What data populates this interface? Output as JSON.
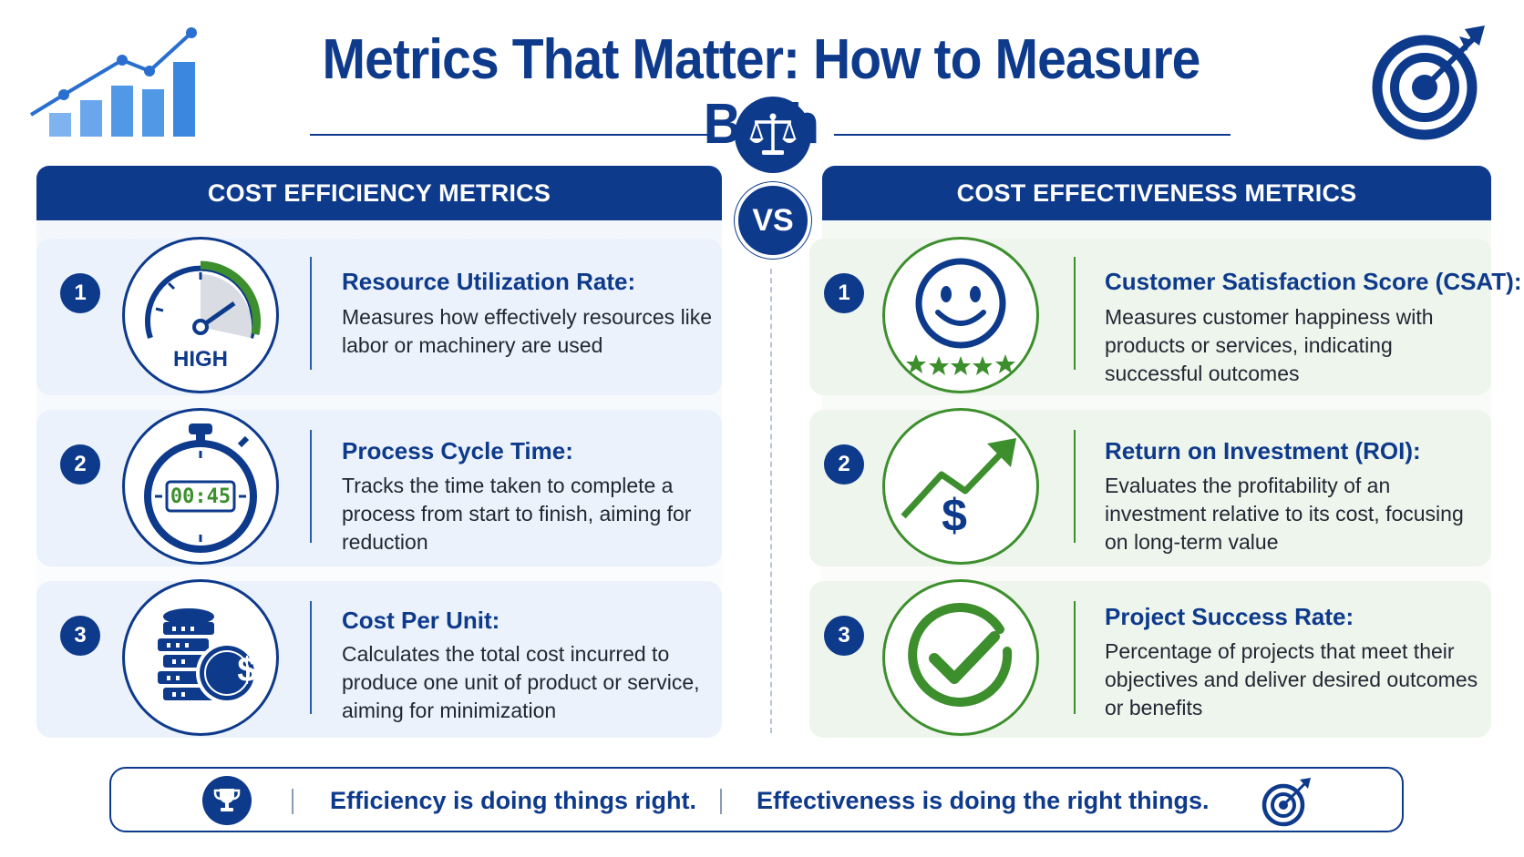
{
  "title": "Metrics That Matter: How to Measure Both",
  "vs_label": "VS",
  "colors": {
    "navy": "#0e3a8c",
    "green": "#3d8f2e",
    "accent_blue": "#4a8fe0"
  },
  "icons": {
    "top_left": "bar-chart-trend-icon",
    "top_right": "target-arrow-icon",
    "center": "balance-scale-icon"
  },
  "left": {
    "header": "COST EFFICIENCY METRICS",
    "items": [
      {
        "num": "1",
        "icon": "gauge-icon",
        "icon_label": "HIGH",
        "title": "Resource Utilization Rate:",
        "desc": "Measures how effectively resources like labor or machinery are used"
      },
      {
        "num": "2",
        "icon": "stopwatch-icon",
        "icon_label": "00:45",
        "title": "Process Cycle Time:",
        "desc": "Tracks the time taken to complete a process from start to finish, aiming for reduction"
      },
      {
        "num": "3",
        "icon": "coins-dollar-icon",
        "icon_label": "$",
        "title": "Cost Per Unit:",
        "desc": "Calculates the total cost incurred to produce one unit of product or service, aiming for minimization"
      }
    ]
  },
  "right": {
    "header": "COST EFFECTIVENESS METRICS",
    "items": [
      {
        "num": "1",
        "icon": "smiley-stars-icon",
        "title": "Customer Satisfaction Score (CSAT):",
        "desc": "Measures customer happiness with products or services, indicating successful outcomes"
      },
      {
        "num": "2",
        "icon": "dollar-growth-arrow-icon",
        "icon_label": "$",
        "title": "Return on Investment (ROI):",
        "desc": "Evaluates the profitability of an investment relative to its cost, focusing on long-term value"
      },
      {
        "num": "3",
        "icon": "checkmark-icon",
        "title": "Project Success Rate:",
        "desc": "Percentage of projects that meet their objectives and deliver desired outcomes or benefits"
      }
    ]
  },
  "footer": {
    "left_text": "Efficiency is doing things right.",
    "right_text": "Effectiveness is doing the right things.",
    "left_icon": "trophy-icon",
    "right_icon": "target-arrow-icon"
  }
}
